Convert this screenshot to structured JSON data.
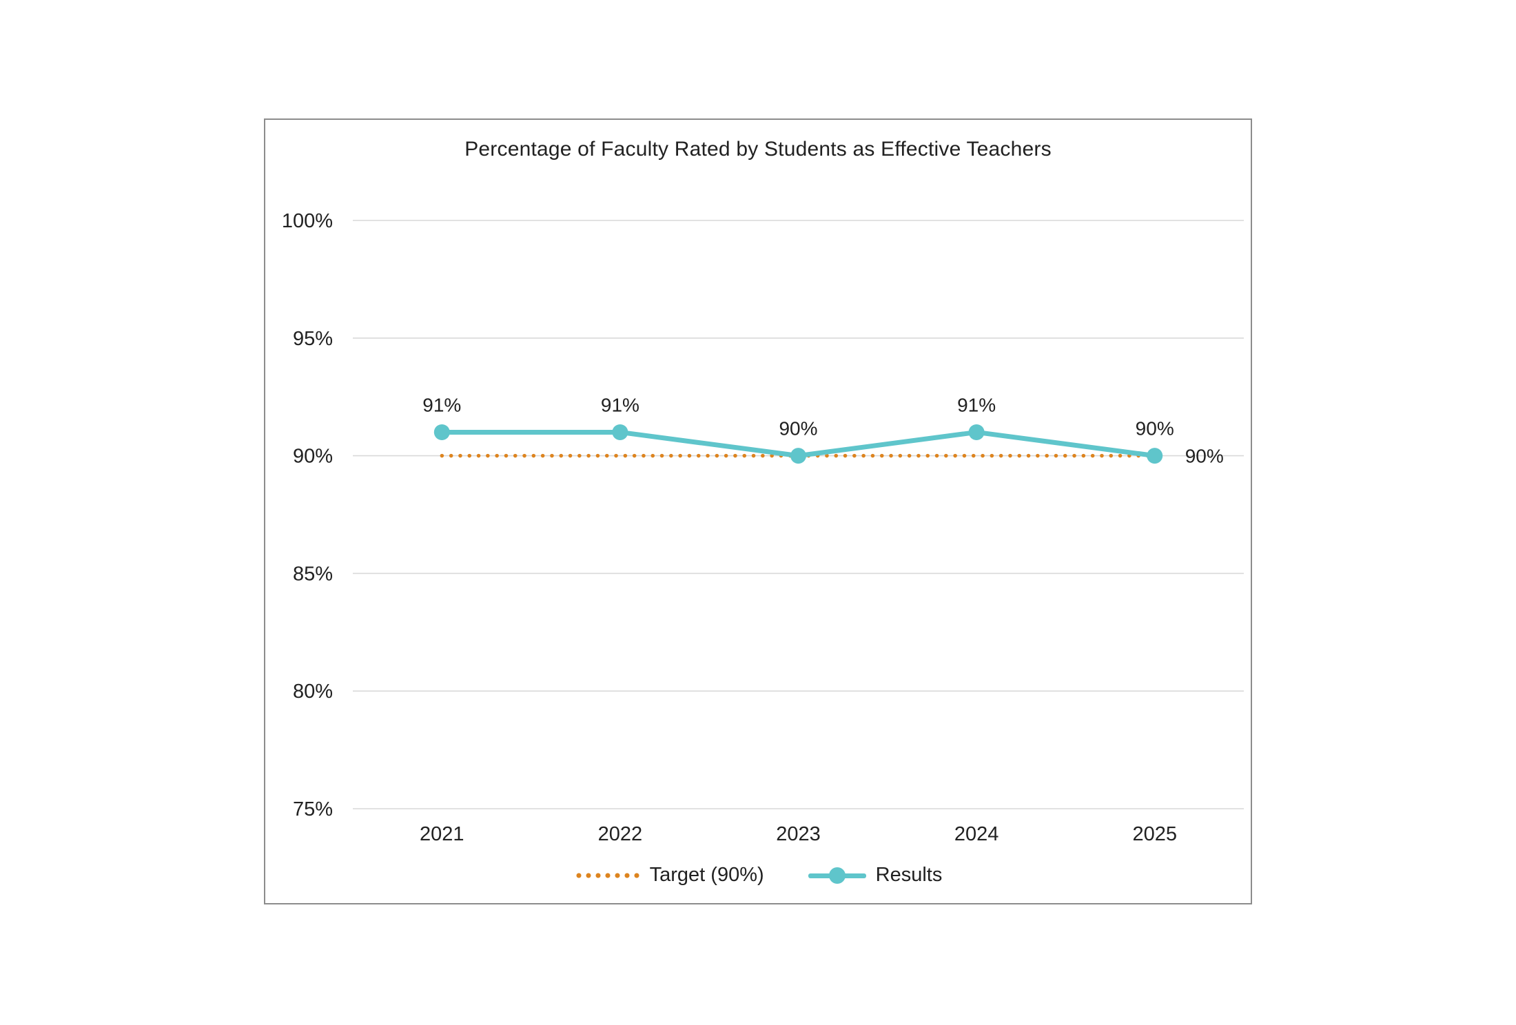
{
  "chart_data": {
    "type": "line",
    "title": "Percentage of Faculty Rated by Students as Effective Teachers",
    "categories": [
      "2021",
      "2022",
      "2023",
      "2024",
      "2025"
    ],
    "series": [
      {
        "name": "Target (90%)",
        "values": [
          90,
          90,
          90,
          90,
          90
        ],
        "color": "#DD841F",
        "line_style": "dotted",
        "markers": false,
        "end_label": "90%"
      },
      {
        "name": "Results",
        "values": [
          91,
          91,
          90,
          91,
          90
        ],
        "color": "#5FC5CB",
        "line_style": "solid",
        "markers": true,
        "data_labels": [
          "91%",
          "91%",
          "90%",
          "91%",
          "90%"
        ]
      }
    ],
    "y_ticks": [
      {
        "label": "100%",
        "value": 100
      },
      {
        "label": "95%",
        "value": 95
      },
      {
        "label": "90%",
        "value": 90
      },
      {
        "label": "85%",
        "value": 85
      },
      {
        "label": "80%",
        "value": 80
      },
      {
        "label": "75%",
        "value": 75
      }
    ],
    "ylim": [
      75,
      100
    ],
    "grid": true,
    "legend_position": "bottom",
    "colors": {
      "results": "#5FC5CB",
      "target": "#DD841F",
      "gridline": "#D9D9D9",
      "text": "#212121",
      "panel_border": "#8C8C8C",
      "background": "#FFFFFF"
    }
  }
}
